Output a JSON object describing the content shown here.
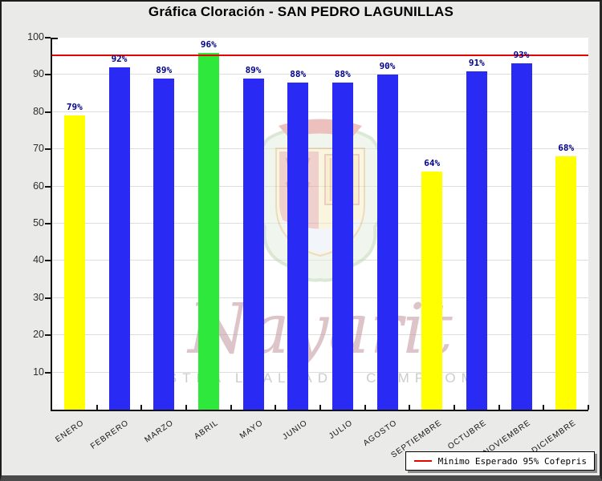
{
  "window": {
    "background": "#eaeae8"
  },
  "chart_data": {
    "type": "bar",
    "title": "Gráfica Cloración - SAN PEDRO LAGUNILLAS",
    "categories": [
      "ENERO",
      "FEBRERO",
      "MARZO",
      "ABRIL",
      "MAYO",
      "JUNIO",
      "JULIO",
      "AGOSTO",
      "SEPTIEMBRE",
      "OCTUBRE",
      "NOVIEMBRE",
      "DICIEMBRE"
    ],
    "values": [
      79,
      92,
      89,
      96,
      89,
      88,
      88,
      90,
      64,
      91,
      93,
      68
    ],
    "value_label_suffix": "%",
    "bar_colors": [
      "#ffff00",
      "#2a2af5",
      "#2a2af5",
      "#2ee83c",
      "#2a2af5",
      "#2a2af5",
      "#2a2af5",
      "#2a2af5",
      "#ffff00",
      "#2a2af5",
      "#2a2af5",
      "#ffff00"
    ],
    "xlabel": "",
    "ylabel": "",
    "ylim": [
      0,
      100
    ],
    "yticks": [
      10,
      20,
      30,
      40,
      50,
      60,
      70,
      80,
      90,
      100
    ],
    "grid": "horizontal",
    "reference_line": {
      "value": 95,
      "color": "#e10600",
      "legend_label": "Minimo Esperado 95% Cofepris"
    },
    "legend_position": "bottom-right"
  },
  "colors": {
    "bar_blue": "#2a2af5",
    "bar_yellow": "#ffff00",
    "bar_green": "#2ee83c",
    "reference_red": "#e10600",
    "value_label_navy": "#00008b",
    "plot_background": "#ffffff",
    "page_background": "#eaeae8"
  },
  "watermark": {
    "script_text": "Nayarit",
    "slogan": "NUESTRA LEALTAD Y COMPROMISO"
  }
}
